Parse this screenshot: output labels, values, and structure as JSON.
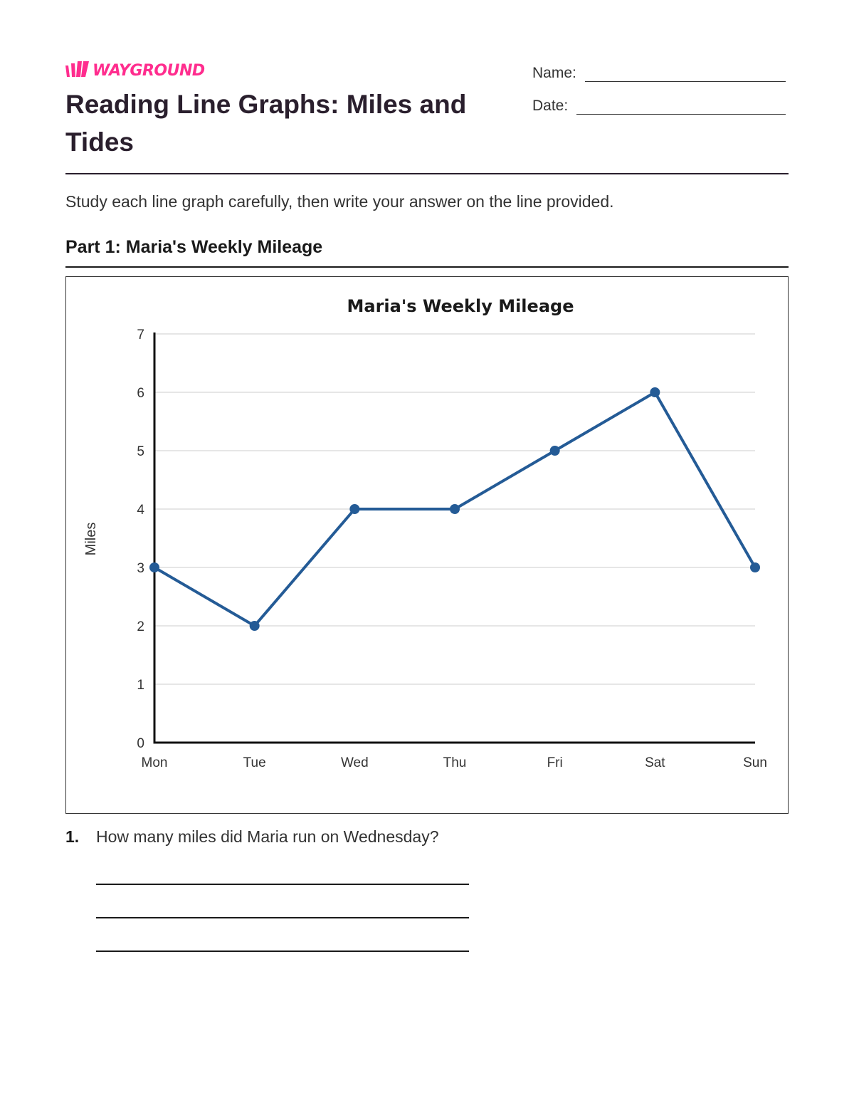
{
  "brand": {
    "name": "WAYGROUND",
    "color": "#ff2d8e"
  },
  "worksheet": {
    "title": "Reading Line Graphs: Miles and Tides",
    "name_label": "Name:",
    "date_label": "Date:",
    "instructions": "Study each line graph carefully, then write your answer on the line provided."
  },
  "part1": {
    "heading": "Part 1: Maria's Weekly Mileage"
  },
  "chart_data": {
    "type": "line",
    "title": "Maria's Weekly Mileage",
    "xlabel": "",
    "ylabel": "Miles",
    "categories": [
      "Mon",
      "Tue",
      "Wed",
      "Thu",
      "Fri",
      "Sat",
      "Sun"
    ],
    "series": [
      {
        "values": [
          3,
          2,
          4,
          4,
          5,
          6,
          3
        ]
      }
    ],
    "ylim": [
      0,
      7
    ],
    "yticks": [
      "0",
      "1",
      "2",
      "3",
      "4",
      "5",
      "6",
      "7"
    ],
    "grid": true,
    "line_color": "#245b96"
  },
  "question1": {
    "number": "1.",
    "text": "How many miles did Maria run on Wednesday?"
  }
}
